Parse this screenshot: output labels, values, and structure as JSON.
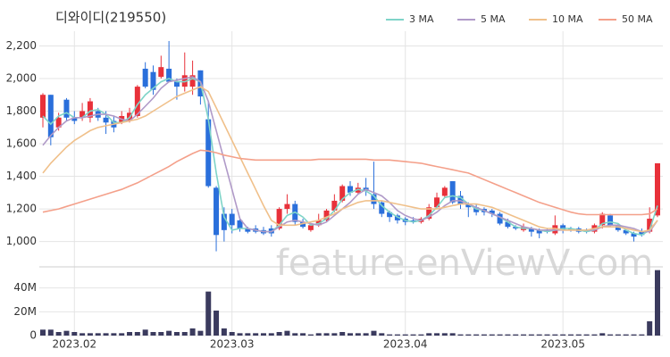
{
  "chart_data": [
    {
      "type": "candlestick",
      "title": "디와이디(219550)",
      "up_color": "#e8313a",
      "down_color": "#2a6fdb",
      "open": [
        1760,
        1900,
        1700,
        1870,
        1760,
        1760,
        1760,
        1800,
        1760,
        1740,
        1730,
        1740,
        1770,
        2060,
        2040,
        2010,
        2060,
        1980,
        1950,
        1950,
        2050,
        1750,
        1330,
        1170,
        1170,
        1130,
        1080,
        1080,
        1070,
        1080,
        1080,
        1200,
        1230,
        1120,
        1070,
        1100,
        1130,
        1190,
        1250,
        1340,
        1300,
        1330,
        1290,
        1240,
        1180,
        1160,
        1140,
        1130,
        1120,
        1140,
        1210,
        1280,
        1370,
        1280,
        1230,
        1210,
        1200,
        1190,
        1170,
        1120,
        1090,
        1070,
        1080,
        1070,
        1070,
        1050,
        1100,
        1080,
        1080,
        1070,
        1060,
        1100,
        1160,
        1100,
        1070,
        1050,
        1060,
        1060,
        1160
      ],
      "high": [
        1910,
        1900,
        1790,
        1880,
        1800,
        1850,
        1880,
        1820,
        1800,
        1770,
        1800,
        1820,
        1960,
        2100,
        2080,
        2140,
        2230,
        2000,
        2160,
        2110,
        2050,
        1860,
        1340,
        1210,
        1200,
        1150,
        1090,
        1100,
        1090,
        1100,
        1210,
        1290,
        1250,
        1140,
        1110,
        1170,
        1200,
        1290,
        1350,
        1370,
        1360,
        1390,
        1490,
        1250,
        1190,
        1170,
        1150,
        1150,
        1150,
        1230,
        1300,
        1340,
        1370,
        1310,
        1240,
        1230,
        1210,
        1200,
        1180,
        1140,
        1100,
        1110,
        1090,
        1080,
        1080,
        1160,
        1110,
        1090,
        1090,
        1080,
        1110,
        1180,
        1170,
        1110,
        1080,
        1060,
        1080,
        1210,
        1480
      ],
      "low": [
        1700,
        1590,
        1680,
        1740,
        1720,
        1740,
        1730,
        1740,
        1660,
        1670,
        1720,
        1730,
        1760,
        1940,
        1900,
        2000,
        1980,
        1870,
        1920,
        1900,
        1840,
        1330,
        940,
        1000,
        1050,
        1060,
        1050,
        1050,
        1040,
        1030,
        1070,
        1170,
        1100,
        1080,
        1060,
        1090,
        1120,
        1180,
        1240,
        1280,
        1290,
        1280,
        1200,
        1150,
        1120,
        1110,
        1100,
        1110,
        1110,
        1130,
        1200,
        1270,
        1230,
        1200,
        1150,
        1160,
        1160,
        1150,
        1100,
        1080,
        1070,
        1060,
        1030,
        1020,
        1050,
        1040,
        1050,
        1060,
        1050,
        1050,
        1050,
        1080,
        1090,
        1060,
        1040,
        1000,
        1030,
        1050,
        1150
      ],
      "close": [
        1900,
        1640,
        1760,
        1760,
        1740,
        1800,
        1860,
        1760,
        1730,
        1700,
        1770,
        1790,
        1950,
        1950,
        1930,
        2070,
        1980,
        1950,
        2020,
        2020,
        1890,
        1340,
        1040,
        1070,
        1100,
        1080,
        1060,
        1060,
        1050,
        1050,
        1200,
        1230,
        1120,
        1090,
        1100,
        1130,
        1190,
        1250,
        1340,
        1300,
        1330,
        1310,
        1230,
        1170,
        1150,
        1130,
        1120,
        1120,
        1140,
        1210,
        1270,
        1330,
        1240,
        1230,
        1210,
        1180,
        1180,
        1170,
        1110,
        1090,
        1080,
        1090,
        1060,
        1050,
        1060,
        1100,
        1070,
        1070,
        1060,
        1060,
        1100,
        1170,
        1100,
        1070,
        1050,
        1030,
        1040,
        1140,
        1480
      ],
      "series": [
        {
          "name": "3 MA",
          "color": "#7fd4c8",
          "values": [
            1770,
            1720,
            1770,
            1790,
            1760,
            1760,
            1800,
            1810,
            1780,
            1730,
            1730,
            1760,
            1840,
            1900,
            1940,
            1980,
            2000,
            1980,
            1980,
            2000,
            1980,
            1750,
            1420,
            1150,
            1070,
            1080,
            1080,
            1070,
            1060,
            1060,
            1100,
            1160,
            1180,
            1150,
            1100,
            1110,
            1140,
            1190,
            1260,
            1300,
            1320,
            1310,
            1280,
            1220,
            1180,
            1150,
            1130,
            1120,
            1130,
            1160,
            1210,
            1270,
            1280,
            1270,
            1230,
            1200,
            1190,
            1170,
            1150,
            1120,
            1090,
            1080,
            1080,
            1070,
            1060,
            1070,
            1080,
            1080,
            1070,
            1060,
            1070,
            1110,
            1120,
            1110,
            1070,
            1050,
            1040,
            1070,
            1220
          ]
        },
        {
          "name": "5 MA",
          "color": "#b09ac8",
          "values": [
            1590,
            1650,
            1700,
            1740,
            1760,
            1760,
            1770,
            1780,
            1780,
            1770,
            1750,
            1740,
            1780,
            1830,
            1880,
            1940,
            1980,
            1990,
            2000,
            2010,
            1980,
            1860,
            1680,
            1500,
            1320,
            1140,
            1080,
            1070,
            1060,
            1060,
            1090,
            1120,
            1130,
            1120,
            1110,
            1100,
            1120,
            1160,
            1200,
            1240,
            1290,
            1320,
            1300,
            1280,
            1240,
            1190,
            1160,
            1140,
            1130,
            1150,
            1180,
            1220,
            1250,
            1250,
            1230,
            1210,
            1190,
            1170,
            1150,
            1130,
            1110,
            1090,
            1080,
            1070,
            1070,
            1070,
            1070,
            1070,
            1070,
            1070,
            1070,
            1090,
            1100,
            1100,
            1090,
            1080,
            1060,
            1060,
            1130
          ]
        },
        {
          "name": "10 MA",
          "color": "#f0c08a",
          "values": [
            1420,
            1480,
            1530,
            1580,
            1620,
            1650,
            1680,
            1700,
            1710,
            1720,
            1730,
            1740,
            1750,
            1770,
            1800,
            1830,
            1860,
            1890,
            1910,
            1930,
            1950,
            1920,
            1820,
            1720,
            1620,
            1520,
            1420,
            1320,
            1220,
            1130,
            1100,
            1100,
            1100,
            1110,
            1120,
            1130,
            1150,
            1170,
            1200,
            1220,
            1240,
            1250,
            1250,
            1250,
            1240,
            1230,
            1220,
            1210,
            1200,
            1200,
            1200,
            1210,
            1220,
            1230,
            1230,
            1230,
            1220,
            1210,
            1190,
            1170,
            1150,
            1130,
            1110,
            1090,
            1080,
            1080,
            1070,
            1070,
            1070,
            1070,
            1080,
            1090,
            1090,
            1090,
            1080,
            1070,
            1060,
            1070,
            1130
          ]
        },
        {
          "name": "50 MA",
          "color": "#f4a08a",
          "values": [
            1180,
            1190,
            1200,
            1215,
            1230,
            1245,
            1260,
            1275,
            1290,
            1305,
            1320,
            1340,
            1360,
            1385,
            1410,
            1435,
            1460,
            1490,
            1515,
            1540,
            1560,
            1555,
            1545,
            1530,
            1520,
            1510,
            1505,
            1500,
            1500,
            1500,
            1500,
            1500,
            1500,
            1500,
            1500,
            1505,
            1505,
            1505,
            1505,
            1505,
            1505,
            1505,
            1500,
            1500,
            1500,
            1495,
            1490,
            1485,
            1480,
            1470,
            1460,
            1450,
            1440,
            1430,
            1420,
            1400,
            1380,
            1360,
            1340,
            1320,
            1300,
            1280,
            1260,
            1240,
            1225,
            1210,
            1195,
            1180,
            1170,
            1165,
            1165,
            1165,
            1165,
            1165,
            1165,
            1165,
            1165,
            1170,
            1200
          ]
        }
      ],
      "ylim": [
        850,
        2290
      ],
      "yticks": [
        {
          "value": 1000,
          "label": "1,000"
        },
        {
          "value": 1200,
          "label": "1,200"
        },
        {
          "value": 1400,
          "label": "1,400"
        },
        {
          "value": 1600,
          "label": "1,600"
        },
        {
          "value": 1800,
          "label": "1,800"
        },
        {
          "value": 2000,
          "label": "2,000"
        },
        {
          "value": 2200,
          "label": "2,200"
        }
      ],
      "grid": true,
      "legend": "top-right",
      "watermark": "feature.enViewV.com"
    },
    {
      "type": "bar",
      "color": "#3b3b5e",
      "categories": [
        null,
        null,
        null,
        null,
        "2023.02",
        null,
        null,
        null,
        null,
        null,
        null,
        null,
        null,
        null,
        null,
        null,
        null,
        null,
        null,
        null,
        null,
        null,
        null,
        null,
        "2023.03",
        null,
        null,
        null,
        null,
        null,
        null,
        null,
        null,
        null,
        null,
        null,
        null,
        null,
        null,
        null,
        null,
        null,
        null,
        null,
        null,
        null,
        "2023.04",
        null,
        null,
        null,
        null,
        null,
        null,
        null,
        null,
        null,
        null,
        null,
        null,
        null,
        null,
        null,
        null,
        null,
        null,
        null,
        "2023.05",
        null,
        null,
        null,
        null,
        null,
        null,
        null,
        null,
        null,
        null,
        null,
        null
      ],
      "values": [
        5,
        5,
        3,
        4,
        3,
        2,
        2,
        2,
        2,
        2,
        2,
        3,
        3,
        5,
        3,
        3,
        4,
        3,
        3,
        6,
        4,
        37,
        21,
        6,
        3,
        2,
        2,
        2,
        2,
        2,
        3,
        4,
        2,
        2,
        1,
        2,
        2,
        2,
        3,
        2,
        2,
        2,
        4,
        2,
        1,
        1,
        1,
        1,
        1,
        2,
        2,
        2,
        2,
        1,
        1,
        1,
        1,
        1,
        1,
        1,
        1,
        1,
        1,
        1,
        1,
        1,
        1,
        1,
        1,
        1,
        1,
        2,
        1,
        1,
        1,
        1,
        1,
        12,
        55
      ],
      "ylim": [
        0,
        57
      ],
      "yticks": [
        0,
        {
          "value": 20,
          "label": "20M"
        },
        {
          "value": 40,
          "label": "40M"
        }
      ],
      "grid": true
    }
  ]
}
